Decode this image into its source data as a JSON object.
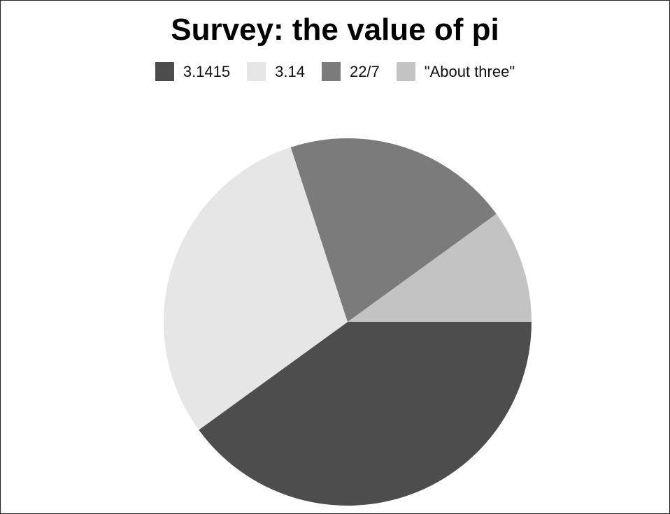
{
  "chart_data": {
    "type": "pie",
    "title": "Survey: the value of pi",
    "categories": [
      "3.1415",
      "3.14",
      "22/7",
      "\"About three\""
    ],
    "values": [
      40,
      30,
      20,
      10
    ],
    "colors": [
      "#4d4d4d",
      "#e6e6e6",
      "#7b7b7b",
      "#c3c3c3"
    ],
    "legend_position": "top",
    "start_angle_deg": 0,
    "direction": "clockwise"
  }
}
